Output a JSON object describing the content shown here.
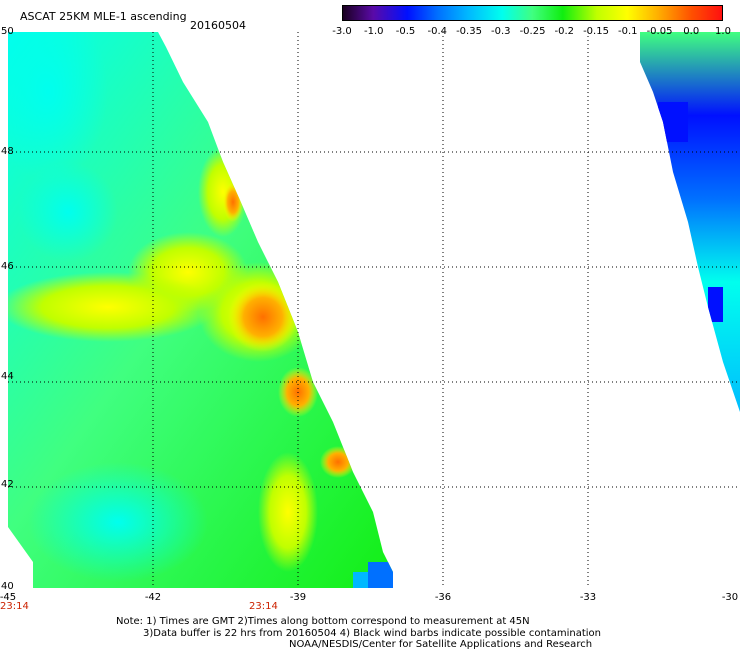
{
  "header": {
    "title": "ASCAT 25KM MLE-1 ascending",
    "date": "20160504"
  },
  "colorbar": {
    "labels": [
      "-3.0",
      "-1.0",
      "-0.5",
      "-0.4",
      "-0.35",
      "-0.3",
      "-0.25",
      "-0.2",
      "-0.15",
      "-0.1",
      "-0.05",
      "0.0",
      "1.0"
    ],
    "colors": [
      "#1a0020",
      "#5a0aa8",
      "#0010ff",
      "#0070ff",
      "#00b8ff",
      "#00ffee",
      "#40ff80",
      "#10ee10",
      "#c0ff00",
      "#ffff00",
      "#ffb000",
      "#ff5000",
      "#ff1010"
    ]
  },
  "axes": {
    "x_labels": [
      "-45",
      "-42",
      "-39",
      "-36",
      "-33",
      "-30"
    ],
    "y_labels": [
      "50",
      "48",
      "46",
      "44",
      "42",
      "40"
    ],
    "time_labels": [
      "23:14",
      "23:14"
    ]
  },
  "notes": {
    "line1": "Note: 1) Times are GMT 2)Times along bottom correspond to measurement at 45N",
    "line2": "3)Data buffer is 22 hrs from 20160504 4) Black wind barbs indicate possible contamination",
    "line3": "NOAA/NESDIS/Center for Satellite Applications and Research"
  },
  "swath_colors": {
    "cyan": "#00ffee",
    "light_green": "#40ff80",
    "green": "#10ee10",
    "yellow_green": "#c0ff00",
    "yellow": "#ffff00",
    "orange": "#ffb000",
    "red_orange": "#ff7000",
    "blue": "#0070ff",
    "deep_blue": "#0010ff",
    "sky": "#00b8ff"
  }
}
